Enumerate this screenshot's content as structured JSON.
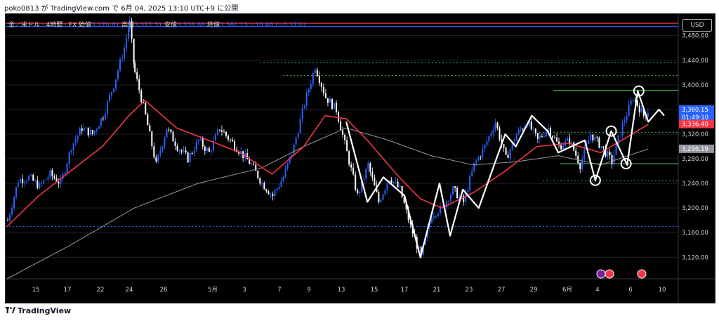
{
  "header": {
    "published_line": "poko0813 が TradingView.com で 6月 04, 2025 13:10 UTC+9 に公開"
  },
  "legend": {
    "symbol": "金／米ドル · 4時間 · FX",
    "open_label": "始値",
    "open": "3,370.61",
    "high_label": "高値",
    "high": "3,372.51",
    "low_label": "安値",
    "low": "3,356.88",
    "close_label": "終値",
    "close": "3,360.15",
    "change": "−10.46 (−0.31%)"
  },
  "currency_button": "USD",
  "brand": "TradingView",
  "price_badges": {
    "last": "3,360.15",
    "countdown": "01:49:10",
    "ma_fast": "3,336.40",
    "ma_slow": "3,296.19"
  },
  "event_icons": [
    "flag-us-icon",
    "flag-us-icon",
    "flag-us-icon"
  ],
  "chart_data": {
    "type": "candlestick",
    "y_tick_labels": [
      "3,480.00",
      "3,440.00",
      "3,400.00",
      "3,360.00",
      "3,320.00",
      "3,280.00",
      "3,240.00",
      "3,200.00",
      "3,160.00",
      "3,120.00"
    ],
    "y_ticks": [
      3480,
      3440,
      3400,
      3360,
      3320,
      3280,
      3240,
      3200,
      3160,
      3120
    ],
    "ylim": [
      3085,
      3515
    ],
    "x_tick_labels": [
      "15",
      "17",
      "22",
      "24",
      "26",
      "5月",
      "3",
      "7",
      "9",
      "13",
      "15",
      "17",
      "21",
      "23",
      "27",
      "29",
      "6月",
      "4",
      "6",
      "10"
    ],
    "grid": true,
    "colors": {
      "up": "#2962ff",
      "down": "#ffffff",
      "ma_fast": "#f23645",
      "ma_slow": "#9598a1",
      "hline_red": "#f23645",
      "hline_blue": "#2962ff",
      "support": "#4caf50",
      "zigzag": "#ffffff",
      "last_badge": "#2962ff",
      "ma_fast_badge": "#f23645",
      "ma_slow_badge": "#9598a1"
    },
    "hlines": [
      {
        "price": 3500,
        "style": "solid",
        "color": "#f23645"
      },
      {
        "price": 3495,
        "style": "solid",
        "color": "#2962ff"
      },
      {
        "price": 3436,
        "style": "dotted",
        "color": "#4caf50"
      },
      {
        "price": 3415,
        "style": "dotted",
        "color": "#4caf50"
      },
      {
        "price": 3391,
        "style": "solid",
        "color": "#4caf50"
      },
      {
        "price": 3323,
        "style": "dotted",
        "color": "#4caf50"
      },
      {
        "price": 3272,
        "style": "solid",
        "color": "#4caf50"
      },
      {
        "price": 3244,
        "style": "dotted",
        "color": "#4caf50"
      },
      {
        "price": 3170,
        "style": "dotted",
        "color": "#2962ff"
      }
    ],
    "ohlc_path": [
      [
        0,
        3180
      ],
      [
        10,
        3245
      ],
      [
        20,
        3250
      ],
      [
        30,
        3235
      ],
      [
        40,
        3255
      ],
      [
        50,
        3240
      ],
      [
        60,
        3300
      ],
      [
        70,
        3330
      ],
      [
        80,
        3320
      ],
      [
        90,
        3350
      ],
      [
        100,
        3400
      ],
      [
        110,
        3460
      ],
      [
        115,
        3500
      ],
      [
        120,
        3420
      ],
      [
        130,
        3350
      ],
      [
        140,
        3270
      ],
      [
        150,
        3330
      ],
      [
        160,
        3300
      ],
      [
        170,
        3280
      ],
      [
        180,
        3310
      ],
      [
        190,
        3290
      ],
      [
        200,
        3330
      ],
      [
        210,
        3310
      ],
      [
        220,
        3290
      ],
      [
        230,
        3270
      ],
      [
        240,
        3240
      ],
      [
        250,
        3220
      ],
      [
        260,
        3250
      ],
      [
        270,
        3300
      ],
      [
        280,
        3370
      ],
      [
        290,
        3430
      ],
      [
        300,
        3380
      ],
      [
        310,
        3360
      ],
      [
        320,
        3290
      ],
      [
        330,
        3220
      ],
      [
        340,
        3270
      ],
      [
        350,
        3210
      ],
      [
        360,
        3250
      ],
      [
        370,
        3230
      ],
      [
        380,
        3170
      ],
      [
        390,
        3120
      ],
      [
        400,
        3190
      ],
      [
        410,
        3200
      ],
      [
        420,
        3230
      ],
      [
        430,
        3210
      ],
      [
        440,
        3270
      ],
      [
        450,
        3300
      ],
      [
        460,
        3340
      ],
      [
        470,
        3280
      ],
      [
        480,
        3320
      ],
      [
        490,
        3340
      ],
      [
        500,
        3310
      ],
      [
        510,
        3330
      ],
      [
        520,
        3300
      ],
      [
        530,
        3310
      ],
      [
        540,
        3270
      ],
      [
        550,
        3320
      ],
      [
        560,
        3300
      ],
      [
        570,
        3275
      ],
      [
        580,
        3335
      ],
      [
        590,
        3380
      ],
      [
        600,
        3350
      ],
      [
        605,
        3360
      ]
    ],
    "ma_fast": [
      [
        0,
        3170
      ],
      [
        30,
        3220
      ],
      [
        60,
        3260
      ],
      [
        90,
        3300
      ],
      [
        115,
        3350
      ],
      [
        130,
        3375
      ],
      [
        160,
        3330
      ],
      [
        190,
        3310
      ],
      [
        220,
        3290
      ],
      [
        250,
        3255
      ],
      [
        280,
        3300
      ],
      [
        300,
        3350
      ],
      [
        320,
        3345
      ],
      [
        340,
        3310
      ],
      [
        370,
        3250
      ],
      [
        390,
        3215
      ],
      [
        410,
        3200
      ],
      [
        440,
        3225
      ],
      [
        470,
        3260
      ],
      [
        500,
        3300
      ],
      [
        530,
        3305
      ],
      [
        560,
        3290
      ],
      [
        580,
        3310
      ],
      [
        605,
        3336
      ]
    ],
    "ma_slow": [
      [
        0,
        3085
      ],
      [
        60,
        3140
      ],
      [
        120,
        3200
      ],
      [
        180,
        3240
      ],
      [
        240,
        3265
      ],
      [
        280,
        3300
      ],
      [
        320,
        3330
      ],
      [
        360,
        3310
      ],
      [
        400,
        3285
      ],
      [
        440,
        3270
      ],
      [
        480,
        3275
      ],
      [
        520,
        3285
      ],
      [
        560,
        3270
      ],
      [
        605,
        3296
      ]
    ],
    "zigzag": [
      [
        320,
        3340
      ],
      [
        340,
        3210
      ],
      [
        355,
        3250
      ],
      [
        375,
        3220
      ],
      [
        390,
        3120
      ],
      [
        408,
        3240
      ],
      [
        418,
        3155
      ],
      [
        430,
        3230
      ],
      [
        445,
        3200
      ],
      [
        470,
        3320
      ],
      [
        480,
        3300
      ],
      [
        495,
        3350
      ],
      [
        510,
        3325
      ],
      [
        520,
        3290
      ],
      [
        545,
        3310
      ],
      [
        555,
        3245
      ],
      [
        570,
        3325
      ],
      [
        585,
        3270
      ],
      [
        595,
        3390
      ],
      [
        605,
        3340
      ],
      [
        615,
        3360
      ],
      [
        620,
        3350
      ]
    ],
    "circles": [
      [
        555,
        3245
      ],
      [
        570,
        3325
      ],
      [
        584,
        3272
      ],
      [
        596,
        3390
      ]
    ]
  }
}
